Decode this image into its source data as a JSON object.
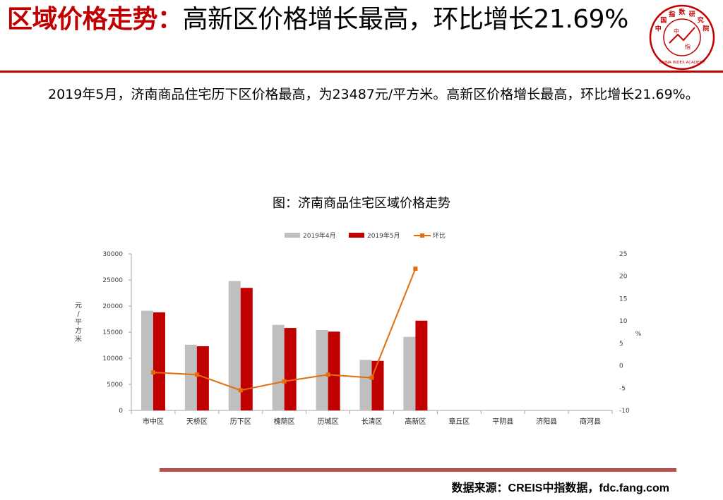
{
  "header": {
    "title_highlight": "区域价格走势：",
    "title_rest": "高新区价格增长最高，环比增长21.69%"
  },
  "logo": {
    "chars": [
      "中",
      "国",
      "指",
      "数",
      "研",
      "究",
      "院"
    ],
    "center_chars": [
      "中",
      "指"
    ],
    "english": "CHINA INDEX ACADEMY",
    "color": "#c00000"
  },
  "summary": {
    "text": "2019年5月，济南商品住宅历下区价格最高，为23487元/平方米。高新区价格增长最高，环比增长21.69%。"
  },
  "chart_title": "图：济南商品住宅区域价格走势",
  "chart_data": {
    "type": "bar",
    "categories": [
      "市中区",
      "天桥区",
      "历下区",
      "槐荫区",
      "历城区",
      "长清区",
      "高新区",
      "章丘区",
      "平阴县",
      "济阳县",
      "商河县"
    ],
    "series": [
      {
        "name": "2019年4月",
        "type": "bar",
        "axis": "left",
        "color": "#bfbfbf",
        "values": [
          19100,
          12600,
          24800,
          16400,
          15400,
          9700,
          14100,
          null,
          null,
          null,
          null
        ]
      },
      {
        "name": "2019年5月",
        "type": "bar",
        "axis": "left",
        "color": "#c00000",
        "values": [
          18800,
          12300,
          23487,
          15800,
          15100,
          9500,
          17200,
          null,
          null,
          null,
          null
        ]
      },
      {
        "name": "环比",
        "type": "line",
        "axis": "right",
        "color": "#e46c0a",
        "values": [
          -1.5,
          -2.0,
          -5.5,
          -3.5,
          -2.0,
          -2.7,
          21.69,
          null,
          null,
          null,
          null
        ]
      }
    ],
    "y_left": {
      "label": "元/平方米",
      "min": 0,
      "max": 30000,
      "ticks": [
        0,
        5000,
        10000,
        15000,
        20000,
        25000,
        30000
      ]
    },
    "y_right": {
      "label": "%",
      "min": -10,
      "max": 25,
      "ticks": [
        -10,
        -5,
        0,
        5,
        10,
        15,
        20,
        25
      ]
    },
    "legend_position": "top-center",
    "grid": false
  },
  "source": "数据来源：CREIS中指数据，fdc.fang.com"
}
